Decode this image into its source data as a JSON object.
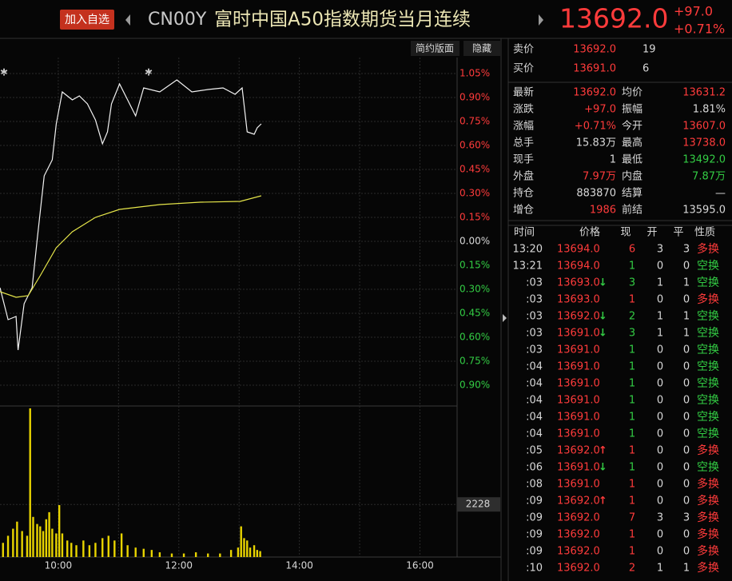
{
  "header": {
    "button": "加入自选",
    "code": "CN00Y",
    "title": "富时中国A50指数期货当月连续",
    "price": "13692.0",
    "change": "+97.0",
    "change_pct": "+0.71%"
  },
  "toolbar": [
    "简约版面",
    "隐藏"
  ],
  "chart_data": [
    {
      "type": "line",
      "ylim": [
        -1.03,
        1.27
      ],
      "xlim": [
        "09:02",
        "16:37"
      ],
      "yticks": [
        {
          "value": 1.05,
          "label": "1.05%"
        },
        {
          "value": 0.9,
          "label": "0.90%"
        },
        {
          "value": 0.75,
          "label": "0.75%"
        },
        {
          "value": 0.6,
          "label": "0.60%"
        },
        {
          "value": 0.45,
          "label": "0.45%"
        },
        {
          "value": 0.3,
          "label": "0.30%"
        },
        {
          "value": 0.15,
          "label": "0.15%"
        },
        {
          "value": 0,
          "label": "0.00%"
        },
        {
          "value": -0.15,
          "label": "0.15%"
        },
        {
          "value": -0.3,
          "label": "0.30%"
        },
        {
          "value": -0.45,
          "label": "0.45%"
        },
        {
          "value": -0.6,
          "label": "0.60%"
        },
        {
          "value": -0.75,
          "label": "0.75%"
        },
        {
          "value": -0.9,
          "label": "0.90%"
        }
      ],
      "grid": true,
      "series": [
        {
          "color": "#f2f2f2",
          "x": [
            "09:02",
            "09:10",
            "09:18",
            "09:20",
            "09:26",
            "09:34",
            "09:39",
            "09:46",
            "09:54",
            "09:58",
            "10:04",
            "10:14",
            "10:21",
            "10:29",
            "10:37",
            "10:44",
            "10:49",
            "10:53",
            "11:01",
            "11:09",
            "11:17",
            "11:25",
            "11:41",
            "11:58",
            "12:13",
            "12:29",
            "12:44",
            "12:56",
            "13:03",
            "13:08",
            "13:15",
            "13:18",
            "13:22"
          ],
          "values": [
            -0.29,
            -0.49,
            -0.47,
            -0.68,
            -0.39,
            -0.29,
            0.01,
            0.41,
            0.51,
            0.735,
            0.935,
            0.885,
            0.91,
            0.86,
            0.76,
            0.61,
            0.685,
            0.86,
            0.985,
            0.885,
            0.785,
            0.96,
            0.935,
            1.01,
            0.935,
            0.95,
            0.96,
            0.92,
            0.96,
            0.685,
            0.67,
            0.71,
            0.735
          ]
        },
        {
          "color": "#e6e64a",
          "x": [
            "09:02",
            "09:18",
            "09:30",
            "09:42",
            "09:58",
            "10:14",
            "10:37",
            "11:01",
            "11:41",
            "12:21",
            "13:01",
            "13:22"
          ],
          "values": [
            -0.315,
            -0.35,
            -0.34,
            -0.215,
            -0.04,
            0.06,
            0.15,
            0.2,
            0.23,
            0.245,
            0.25,
            0.285
          ]
        }
      ]
    },
    {
      "type": "bar",
      "color": "#e8d400",
      "ylim": [
        0,
        6400
      ],
      "yticks": [
        2228
      ],
      "xlim": [
        "09:02",
        "16:37"
      ],
      "xticks": [
        "10:00",
        "12:00",
        "14:00",
        "16:00"
      ],
      "x": [
        "09:05",
        "09:10",
        "09:15",
        "09:19",
        "09:24",
        "09:29",
        "09:32",
        "09:35",
        "09:39",
        "09:42",
        "09:45",
        "09:48",
        "09:51",
        "09:54",
        "09:58",
        "10:01",
        "10:04",
        "10:09",
        "10:13",
        "10:18",
        "10:25",
        "10:31",
        "10:37",
        "10:44",
        "10:50",
        "10:56",
        "11:03",
        "11:09",
        "11:17",
        "11:25",
        "11:33",
        "11:41",
        "11:53",
        "12:05",
        "12:17",
        "12:29",
        "12:41",
        "12:52",
        "12:59",
        "13:02",
        "13:05",
        "13:08",
        "13:11",
        "13:15",
        "13:18",
        "13:21"
      ],
      "values": [
        600,
        900,
        1200,
        1500,
        1100,
        900,
        6300,
        1700,
        1400,
        1300,
        1100,
        1600,
        1900,
        1200,
        1000,
        2200,
        1000,
        700,
        600,
        500,
        700,
        500,
        600,
        800,
        900,
        700,
        1000,
        500,
        400,
        350,
        300,
        200,
        150,
        150,
        200,
        150,
        150,
        300,
        400,
        1300,
        800,
        700,
        400,
        500,
        300,
        250
      ]
    }
  ],
  "order_book": [
    {
      "label": "卖价",
      "price": "13692.0",
      "volume": "19"
    },
    {
      "label": "买价",
      "price": "13691.0",
      "volume": "6"
    }
  ],
  "stats": [
    [
      {
        "label": "最新",
        "value": "13692.0",
        "color": "red"
      },
      {
        "label": "均价",
        "value": "13631.2",
        "color": "red"
      }
    ],
    [
      {
        "label": "涨跌",
        "value": "+97.0",
        "color": "red"
      },
      {
        "label": "振幅",
        "value": "1.81%",
        "color": "white"
      }
    ],
    [
      {
        "label": "涨幅",
        "value": "+0.71%",
        "color": "red"
      },
      {
        "label": "今开",
        "value": "13607.0",
        "color": "red"
      }
    ],
    [
      {
        "label": "总手",
        "value": "15.83万",
        "color": "white"
      },
      {
        "label": "最高",
        "value": "13738.0",
        "color": "red"
      }
    ],
    [
      {
        "label": "现手",
        "value": "1",
        "color": "white"
      },
      {
        "label": "最低",
        "value": "13492.0",
        "color": "green"
      }
    ],
    [
      {
        "label": "外盘",
        "value": "7.97万",
        "color": "red"
      },
      {
        "label": "内盘",
        "value": "7.87万",
        "color": "green"
      }
    ],
    [
      {
        "label": "持仓",
        "value": "883870",
        "color": "white"
      },
      {
        "label": "结算",
        "value": "—",
        "color": "white"
      }
    ],
    [
      {
        "label": "增仓",
        "value": "1986",
        "color": "red"
      },
      {
        "label": "前结",
        "value": "13595.0",
        "color": "white"
      }
    ]
  ],
  "trades": {
    "header": [
      "时间",
      "价格",
      "现",
      "开",
      "平",
      "性质"
    ],
    "rows": [
      {
        "time": "13:20",
        "price": "13694.0",
        "vol": "6",
        "open": "3",
        "close": "3",
        "type": "多换",
        "color": "red"
      },
      {
        "time": "13:21",
        "price": "13694.0",
        "vol": "1",
        "open": "0",
        "close": "0",
        "type": "空换",
        "color": "green"
      },
      {
        "time": ":03",
        "price": "13693.0",
        "arrow": "↓",
        "arrow_color": "green",
        "vol": "3",
        "open": "1",
        "close": "1",
        "type": "空换",
        "color": "green"
      },
      {
        "time": ":03",
        "price": "13693.0",
        "vol": "1",
        "open": "0",
        "close": "0",
        "type": "多换",
        "color": "red"
      },
      {
        "time": ":03",
        "price": "13692.0",
        "arrow": "↓",
        "arrow_color": "green",
        "vol": "2",
        "open": "1",
        "close": "1",
        "type": "空换",
        "color": "green"
      },
      {
        "time": ":03",
        "price": "13691.0",
        "arrow": "↓",
        "arrow_color": "green",
        "vol": "3",
        "open": "1",
        "close": "1",
        "type": "空换",
        "color": "green"
      },
      {
        "time": ":03",
        "price": "13691.0",
        "vol": "1",
        "open": "0",
        "close": "0",
        "type": "空换",
        "color": "green"
      },
      {
        "time": ":04",
        "price": "13691.0",
        "vol": "1",
        "open": "0",
        "close": "0",
        "type": "空换",
        "color": "green"
      },
      {
        "time": ":04",
        "price": "13691.0",
        "vol": "1",
        "open": "0",
        "close": "0",
        "type": "空换",
        "color": "green"
      },
      {
        "time": ":04",
        "price": "13691.0",
        "vol": "1",
        "open": "0",
        "close": "0",
        "type": "空换",
        "color": "green"
      },
      {
        "time": ":04",
        "price": "13691.0",
        "vol": "1",
        "open": "0",
        "close": "0",
        "type": "空换",
        "color": "green"
      },
      {
        "time": ":04",
        "price": "13691.0",
        "vol": "1",
        "open": "0",
        "close": "0",
        "type": "空换",
        "color": "green"
      },
      {
        "time": ":05",
        "price": "13692.0",
        "arrow": "↑",
        "arrow_color": "red",
        "vol": "1",
        "open": "0",
        "close": "0",
        "type": "多换",
        "color": "red"
      },
      {
        "time": ":06",
        "price": "13691.0",
        "arrow": "↓",
        "arrow_color": "green",
        "vol": "1",
        "open": "0",
        "close": "0",
        "type": "空换",
        "color": "green"
      },
      {
        "time": ":08",
        "price": "13691.0",
        "vol": "1",
        "open": "0",
        "close": "0",
        "type": "多换",
        "color": "red"
      },
      {
        "time": ":09",
        "price": "13692.0",
        "arrow": "↑",
        "arrow_color": "red",
        "vol": "1",
        "open": "0",
        "close": "0",
        "type": "多换",
        "color": "red"
      },
      {
        "time": ":09",
        "price": "13692.0",
        "vol": "7",
        "open": "3",
        "close": "3",
        "type": "多换",
        "color": "red"
      },
      {
        "time": ":09",
        "price": "13692.0",
        "vol": "1",
        "open": "0",
        "close": "0",
        "type": "多换",
        "color": "red"
      },
      {
        "time": ":09",
        "price": "13692.0",
        "vol": "1",
        "open": "0",
        "close": "0",
        "type": "多换",
        "color": "red"
      },
      {
        "time": ":10",
        "price": "13692.0",
        "vol": "2",
        "open": "1",
        "close": "1",
        "type": "多换",
        "color": "red"
      }
    ]
  }
}
